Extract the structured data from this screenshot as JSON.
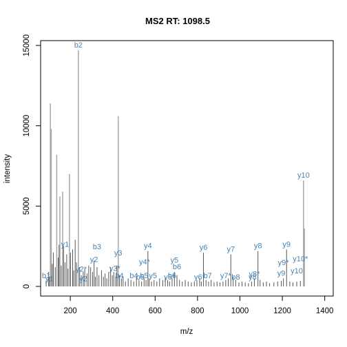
{
  "chart_data": {
    "type": "bar",
    "title": "MS2 RT: 1098.5",
    "xlabel": "m/z",
    "ylabel": "intensity",
    "xlim": [
      60,
      1440
    ],
    "ylim": [
      -600,
      15300
    ],
    "xticks": [
      200,
      400,
      600,
      800,
      1000,
      1200,
      1400
    ],
    "yticks": [
      0,
      5000,
      10000,
      15000
    ],
    "xtick_labels": [
      "200",
      "400",
      "600",
      "800",
      "1000",
      "1200",
      "1400"
    ],
    "ytick_labels": [
      "0",
      "5000",
      "10000",
      "15000"
    ],
    "annotation_color": "#4682b4",
    "peaks": [
      {
        "mz": 86,
        "i": 350
      },
      {
        "mz": 98,
        "i": 900
      },
      {
        "mz": 101,
        "i": 600
      },
      {
        "mz": 106,
        "i": 11400
      },
      {
        "mz": 110,
        "i": 9800
      },
      {
        "mz": 115,
        "i": 1400
      },
      {
        "mz": 120,
        "i": 2100
      },
      {
        "mz": 129,
        "i": 1200
      },
      {
        "mz": 136,
        "i": 8200
      },
      {
        "mz": 143,
        "i": 1800
      },
      {
        "mz": 147,
        "i": 2600
      },
      {
        "mz": 151,
        "i": 5600
      },
      {
        "mz": 157,
        "i": 1300
      },
      {
        "mz": 164,
        "i": 5900
      },
      {
        "mz": 168,
        "i": 2500
      },
      {
        "mz": 175,
        "i": 1500
      },
      {
        "mz": 183,
        "i": 2000
      },
      {
        "mz": 189,
        "i": 1100
      },
      {
        "mz": 196,
        "i": 7000
      },
      {
        "mz": 201,
        "i": 2100
      },
      {
        "mz": 211,
        "i": 2300
      },
      {
        "mz": 216,
        "i": 1000
      },
      {
        "mz": 223,
        "i": 2900
      },
      {
        "mz": 229,
        "i": 1500
      },
      {
        "mz": 238,
        "i": 14700
      },
      {
        "mz": 244,
        "i": 1200
      },
      {
        "mz": 252,
        "i": 700
      },
      {
        "mz": 261,
        "i": 900
      },
      {
        "mz": 268,
        "i": 1100
      },
      {
        "mz": 279,
        "i": 800
      },
      {
        "mz": 287,
        "i": 1300
      },
      {
        "mz": 296,
        "i": 1200
      },
      {
        "mz": 305,
        "i": 900
      },
      {
        "mz": 312,
        "i": 1600
      },
      {
        "mz": 318,
        "i": 600
      },
      {
        "mz": 326,
        "i": 1200
      },
      {
        "mz": 335,
        "i": 700
      },
      {
        "mz": 347,
        "i": 1000
      },
      {
        "mz": 356,
        "i": 600
      },
      {
        "mz": 364,
        "i": 800
      },
      {
        "mz": 372,
        "i": 500
      },
      {
        "mz": 381,
        "i": 900
      },
      {
        "mz": 390,
        "i": 1200
      },
      {
        "mz": 398,
        "i": 700
      },
      {
        "mz": 405,
        "i": 900
      },
      {
        "mz": 414,
        "i": 600
      },
      {
        "mz": 420,
        "i": 1300
      },
      {
        "mz": 426,
        "i": 10600
      },
      {
        "mz": 432,
        "i": 700
      },
      {
        "mz": 441,
        "i": 500
      },
      {
        "mz": 449,
        "i": 600
      },
      {
        "mz": 460,
        "i": 300
      },
      {
        "mz": 473,
        "i": 500
      },
      {
        "mz": 486,
        "i": 400
      },
      {
        "mz": 499,
        "i": 300
      },
      {
        "mz": 512,
        "i": 600
      },
      {
        "mz": 524,
        "i": 400
      },
      {
        "mz": 536,
        "i": 300
      },
      {
        "mz": 548,
        "i": 500
      },
      {
        "mz": 557,
        "i": 400
      },
      {
        "mz": 566,
        "i": 2200
      },
      {
        "mz": 572,
        "i": 500
      },
      {
        "mz": 583,
        "i": 300
      },
      {
        "mz": 595,
        "i": 400
      },
      {
        "mz": 608,
        "i": 300
      },
      {
        "mz": 621,
        "i": 500
      },
      {
        "mz": 636,
        "i": 400
      },
      {
        "mz": 648,
        "i": 600
      },
      {
        "mz": 659,
        "i": 400
      },
      {
        "mz": 668,
        "i": 300
      },
      {
        "mz": 680,
        "i": 500
      },
      {
        "mz": 691,
        "i": 900
      },
      {
        "mz": 703,
        "i": 700
      },
      {
        "mz": 715,
        "i": 400
      },
      {
        "mz": 728,
        "i": 300
      },
      {
        "mz": 742,
        "i": 400
      },
      {
        "mz": 756,
        "i": 300
      },
      {
        "mz": 771,
        "i": 250
      },
      {
        "mz": 785,
        "i": 300
      },
      {
        "mz": 797,
        "i": 400
      },
      {
        "mz": 810,
        "i": 500
      },
      {
        "mz": 818,
        "i": 300
      },
      {
        "mz": 828,
        "i": 2100
      },
      {
        "mz": 840,
        "i": 400
      },
      {
        "mz": 852,
        "i": 300
      },
      {
        "mz": 864,
        "i": 400
      },
      {
        "mz": 878,
        "i": 250
      },
      {
        "mz": 892,
        "i": 300
      },
      {
        "mz": 906,
        "i": 250
      },
      {
        "mz": 920,
        "i": 300
      },
      {
        "mz": 933,
        "i": 400
      },
      {
        "mz": 945,
        "i": 500
      },
      {
        "mz": 957,
        "i": 2000
      },
      {
        "mz": 968,
        "i": 600
      },
      {
        "mz": 980,
        "i": 400
      },
      {
        "mz": 995,
        "i": 250
      },
      {
        "mz": 1010,
        "i": 300
      },
      {
        "mz": 1025,
        "i": 250
      },
      {
        "mz": 1040,
        "i": 200
      },
      {
        "mz": 1055,
        "i": 300
      },
      {
        "mz": 1068,
        "i": 500
      },
      {
        "mz": 1085,
        "i": 2200
      },
      {
        "mz": 1095,
        "i": 400
      },
      {
        "mz": 1110,
        "i": 250
      },
      {
        "mz": 1125,
        "i": 300
      },
      {
        "mz": 1140,
        "i": 200
      },
      {
        "mz": 1160,
        "i": 250
      },
      {
        "mz": 1178,
        "i": 300
      },
      {
        "mz": 1195,
        "i": 350
      },
      {
        "mz": 1205,
        "i": 500
      },
      {
        "mz": 1220,
        "i": 2300
      },
      {
        "mz": 1235,
        "i": 300
      },
      {
        "mz": 1250,
        "i": 250
      },
      {
        "mz": 1268,
        "i": 300
      },
      {
        "mz": 1285,
        "i": 350
      },
      {
        "mz": 1300,
        "i": 6600
      },
      {
        "mz": 1304,
        "i": 3600
      }
    ],
    "annotations": [
      {
        "label": "b1",
        "mz": 86,
        "i": 350
      },
      {
        "label": "y1",
        "mz": 101,
        "i": 150
      },
      {
        "label": "y1",
        "mz": 175,
        "i": 2300
      },
      {
        "label": "b2",
        "mz": 238,
        "i": 14700
      },
      {
        "label": "y2*",
        "mz": 252,
        "i": 750
      },
      {
        "label": "y2",
        "mz": 261,
        "i": 150
      },
      {
        "label": "y2",
        "mz": 312,
        "i": 1350
      },
      {
        "label": "b3",
        "mz": 326,
        "i": 2150
      },
      {
        "label": "y3",
        "mz": 426,
        "i": 1750
      },
      {
        "label": "y3*",
        "mz": 410,
        "i": 800
      },
      {
        "label": "b4",
        "mz": 432,
        "i": 350
      },
      {
        "label": "b4",
        "mz": 500,
        "i": 350
      },
      {
        "label": "y4",
        "mz": 566,
        "i": 2200
      },
      {
        "label": "y4*",
        "mz": 550,
        "i": 1200
      },
      {
        "label": "b5",
        "mz": 530,
        "i": 250
      },
      {
        "label": "b5",
        "mz": 548,
        "i": 350
      },
      {
        "label": "y5",
        "mz": 590,
        "i": 350
      },
      {
        "label": "y5",
        "mz": 691,
        "i": 1300
      },
      {
        "label": "b6",
        "mz": 703,
        "i": 900
      },
      {
        "label": "b6",
        "mz": 680,
        "i": 350
      },
      {
        "label": "y5*",
        "mz": 668,
        "i": 250
      },
      {
        "label": "y6",
        "mz": 828,
        "i": 2100
      },
      {
        "label": "y6*",
        "mz": 810,
        "i": 250
      },
      {
        "label": "b7",
        "mz": 848,
        "i": 350
      },
      {
        "label": "y7",
        "mz": 957,
        "i": 2000
      },
      {
        "label": "y7*",
        "mz": 933,
        "i": 350
      },
      {
        "label": "b8",
        "mz": 980,
        "i": 250
      },
      {
        "label": "y8",
        "mz": 1085,
        "i": 2200
      },
      {
        "label": "y8*",
        "mz": 1068,
        "i": 450
      },
      {
        "label": "y8",
        "mz": 1060,
        "i": 250
      },
      {
        "label": "y9",
        "mz": 1220,
        "i": 2300
      },
      {
        "label": "y9*",
        "mz": 1205,
        "i": 1150
      },
      {
        "label": "y9",
        "mz": 1195,
        "i": 500
      },
      {
        "label": "y10",
        "mz": 1300,
        "i": 6600
      },
      {
        "label": "y10*",
        "mz": 1285,
        "i": 1400
      },
      {
        "label": "y10",
        "mz": 1268,
        "i": 650
      }
    ]
  }
}
